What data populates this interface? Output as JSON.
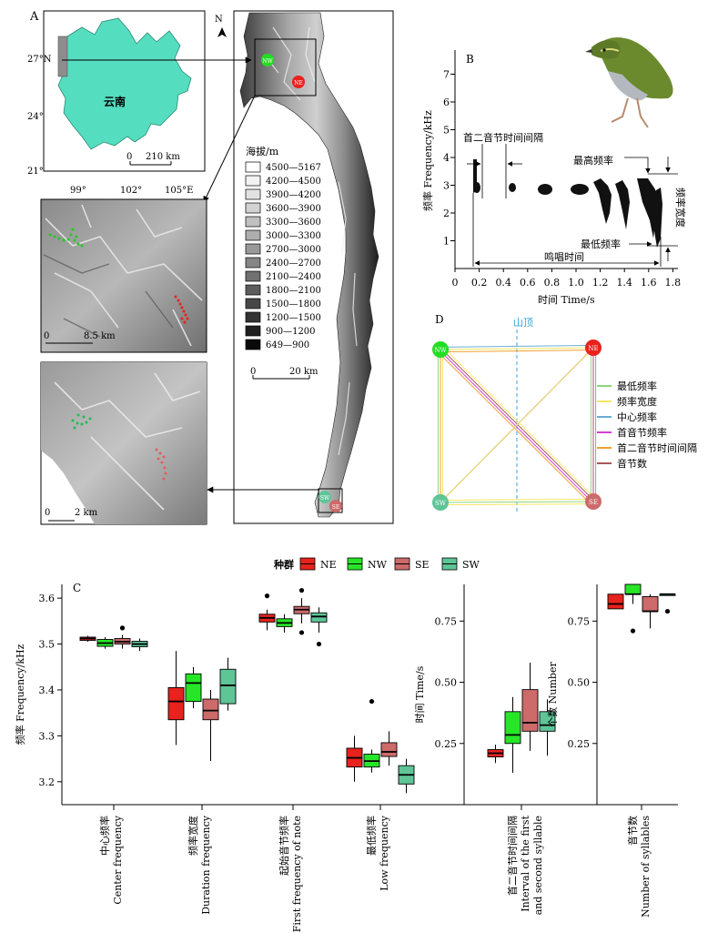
{
  "panel_labels": {
    "a": "A",
    "b": "B",
    "c": "C",
    "d": "D"
  },
  "map": {
    "province_label": "云南",
    "lat_ticks": [
      "27°N",
      "24°",
      "21°"
    ],
    "lon_ticks": [
      "99°",
      "102°",
      "105°E"
    ],
    "scale_main": {
      "zero": "0",
      "value": "210 km"
    },
    "north": "N",
    "legend_title": "海拔/m",
    "legend": [
      {
        "label": "4500—5167",
        "color": "#ffffff"
      },
      {
        "label": "4200—4500",
        "color": "#f2f2f2"
      },
      {
        "label": "3900—4200",
        "color": "#e2e2e2"
      },
      {
        "label": "3600—3900",
        "color": "#d2d2d2"
      },
      {
        "label": "3300—3600",
        "color": "#c0c0c0"
      },
      {
        "label": "3000—3300",
        "color": "#adadad"
      },
      {
        "label": "2700—3000",
        "color": "#999999"
      },
      {
        "label": "2400—2700",
        "color": "#858585"
      },
      {
        "label": "2100—2400",
        "color": "#707070"
      },
      {
        "label": "1800—2100",
        "color": "#5c5c5c"
      },
      {
        "label": "1500—1800",
        "color": "#474747"
      },
      {
        "label": "1200—1500",
        "color": "#333333"
      },
      {
        "label": "900—1200",
        "color": "#1f1f1f"
      },
      {
        "label": "649—900",
        "color": "#0a0a0a"
      }
    ],
    "scale_legend": {
      "zero": "0",
      "value": "20 km"
    },
    "scale_inset1": {
      "zero": "0",
      "value": "8.5 km"
    },
    "scale_inset2": {
      "zero": "0",
      "value": "2 km"
    },
    "sites": {
      "nw": "NW",
      "ne": "NE",
      "sw": "SW",
      "se": "SE"
    }
  },
  "spectrogram": {
    "ylabel": "频率 Frequency/kHz",
    "xlabel": "时间 Time/s",
    "yticks": [
      "1",
      "2",
      "3",
      "4",
      "5",
      "6",
      "7"
    ],
    "xticks": [
      "0",
      "0.2",
      "0.4",
      "0.6",
      "0.8",
      "1.0",
      "1.2",
      "1.4",
      "1.6",
      "1.8"
    ],
    "ann_interval": "首二音节时间间隔",
    "ann_max": "最高频率",
    "ann_min": "最低频率",
    "ann_bandwidth": "频率宽度",
    "ann_duration": "鸣唱时间"
  },
  "network": {
    "ridge": "山顶",
    "nodes": {
      "nw": "NW",
      "ne": "NE",
      "sw": "SW",
      "se": "SE"
    },
    "legend": [
      {
        "label": "最低频率",
        "color": "#8fd67a"
      },
      {
        "label": "频率宽度",
        "color": "#f5e663"
      },
      {
        "label": "中心频率",
        "color": "#6aaed6"
      },
      {
        "label": "首音节频率",
        "color": "#d63fd6"
      },
      {
        "label": "首二音节时间间隔",
        "color": "#f0a030"
      },
      {
        "label": "音节数",
        "color": "#a8555a"
      }
    ]
  },
  "chart_data": {
    "type": "box",
    "legend_title": "种群",
    "groups": [
      {
        "name": "NE",
        "color": "#e8221c"
      },
      {
        "name": "NW",
        "color": "#27e627"
      },
      {
        "name": "SE",
        "color": "#cd6a6a"
      },
      {
        "name": "SW",
        "color": "#5fc597"
      }
    ],
    "panels": [
      {
        "ylabel": "频率 Frequency/kHz",
        "yticks": [
          "3.2",
          "3.3",
          "3.4",
          "3.5",
          "3.6"
        ],
        "ylim": [
          3.15,
          3.63
        ],
        "variables": [
          {
            "label_cn": "中心频率",
            "label_en": "Center frequency",
            "boxes": [
              {
                "min": 3.505,
                "q1": 3.508,
                "median": 3.512,
                "q3": 3.515,
                "max": 3.518,
                "outliers": []
              },
              {
                "min": 3.49,
                "q1": 3.495,
                "median": 3.502,
                "q3": 3.51,
                "max": 3.515,
                "outliers": []
              },
              {
                "min": 3.49,
                "q1": 3.5,
                "median": 3.505,
                "q3": 3.512,
                "max": 3.52,
                "outliers": [
                  3.535
                ]
              },
              {
                "min": 3.485,
                "q1": 3.494,
                "median": 3.5,
                "q3": 3.506,
                "max": 3.512,
                "outliers": []
              }
            ]
          },
          {
            "label_cn": "频率宽度",
            "label_en": "Duration frequency",
            "boxes": [
              {
                "min": 3.28,
                "q1": 3.335,
                "median": 3.375,
                "q3": 3.405,
                "max": 3.485,
                "outliers": []
              },
              {
                "min": 3.36,
                "q1": 3.375,
                "median": 3.415,
                "q3": 3.435,
                "max": 3.45,
                "outliers": []
              },
              {
                "min": 3.245,
                "q1": 3.335,
                "median": 3.355,
                "q3": 3.38,
                "max": 3.4,
                "outliers": []
              },
              {
                "min": 3.355,
                "q1": 3.37,
                "median": 3.41,
                "q3": 3.445,
                "max": 3.47,
                "outliers": []
              }
            ]
          },
          {
            "label_cn": "起始音节频率",
            "label_en": "First frequency of note",
            "boxes": [
              {
                "min": 3.53,
                "q1": 3.548,
                "median": 3.557,
                "q3": 3.565,
                "max": 3.575,
                "outliers": [
                  3.605
                ]
              },
              {
                "min": 3.525,
                "q1": 3.538,
                "median": 3.546,
                "q3": 3.555,
                "max": 3.565,
                "outliers": []
              },
              {
                "min": 3.545,
                "q1": 3.566,
                "median": 3.575,
                "q3": 3.582,
                "max": 3.6,
                "outliers": [
                  3.525,
                  3.617
                ]
              },
              {
                "min": 3.525,
                "q1": 3.548,
                "median": 3.56,
                "q3": 3.568,
                "max": 3.58,
                "outliers": [
                  3.5
                ]
              }
            ]
          },
          {
            "label_cn": "最低频率",
            "label_en": "Low frequency",
            "boxes": [
              {
                "min": 3.2,
                "q1": 3.232,
                "median": 3.252,
                "q3": 3.273,
                "max": 3.3,
                "outliers": []
              },
              {
                "min": 3.22,
                "q1": 3.232,
                "median": 3.245,
                "q3": 3.26,
                "max": 3.27,
                "outliers": [
                  3.375
                ]
              },
              {
                "min": 3.235,
                "q1": 3.255,
                "median": 3.265,
                "q3": 3.285,
                "max": 3.31,
                "outliers": []
              },
              {
                "min": 3.175,
                "q1": 3.195,
                "median": 3.215,
                "q3": 3.235,
                "max": 3.25,
                "outliers": []
              }
            ]
          }
        ]
      },
      {
        "ylabel": "时间 Time/s",
        "yticks": [
          "0.25",
          "0.50",
          "0.75"
        ],
        "ylim": [
          0.0,
          0.9
        ],
        "variables": [
          {
            "label_cn": "首二音节时间间隔",
            "label_en": "Interval of the first and second syllable",
            "boxes": [
              {
                "min": 0.17,
                "q1": 0.195,
                "median": 0.21,
                "q3": 0.225,
                "max": 0.245,
                "outliers": []
              },
              {
                "min": 0.13,
                "q1": 0.25,
                "median": 0.285,
                "q3": 0.38,
                "max": 0.44,
                "outliers": []
              },
              {
                "min": 0.22,
                "q1": 0.3,
                "median": 0.335,
                "q3": 0.47,
                "max": 0.58,
                "outliers": []
              },
              {
                "min": 0.2,
                "q1": 0.3,
                "median": 0.325,
                "q3": 0.38,
                "max": 0.43,
                "outliers": []
              }
            ]
          }
        ]
      },
      {
        "ylabel": "个数 Number",
        "yticks": [
          "0.25",
          "0.50",
          "0.75"
        ],
        "ylim": [
          0.0,
          0.9
        ],
        "variables": [
          {
            "label_cn": "音节数",
            "label_en": "Number of syllables",
            "boxes": [
              {
                "min": 0.8,
                "q1": 0.8,
                "median": 0.82,
                "q3": 0.86,
                "max": 0.86,
                "outliers": []
              },
              {
                "min": 0.82,
                "q1": 0.86,
                "median": 0.86,
                "q3": 0.9,
                "max": 0.9,
                "outliers": [
                  0.71
                ]
              },
              {
                "min": 0.72,
                "q1": 0.79,
                "median": 0.79,
                "q3": 0.85,
                "max": 0.86,
                "outliers": []
              },
              {
                "min": 0.86,
                "q1": 0.86,
                "median": 0.86,
                "q3": 0.86,
                "max": 0.86,
                "outliers": [
                  0.79
                ]
              }
            ]
          }
        ]
      }
    ]
  }
}
